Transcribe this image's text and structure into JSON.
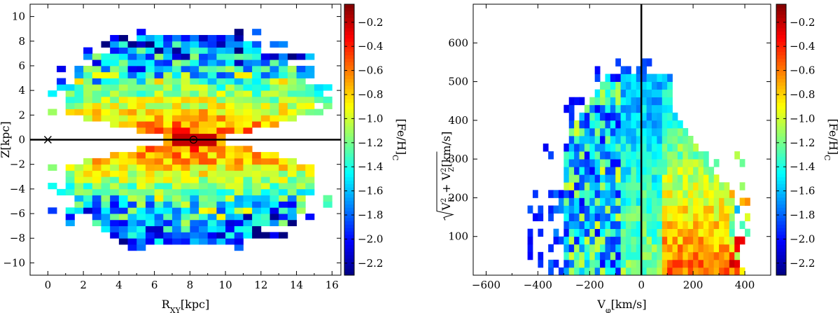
{
  "chart_data": [
    {
      "type": "heatmap",
      "xlabel_main": "R",
      "xlabel_sub": "XY",
      "xlabel_unit": "[kpc]",
      "ylabel": "Z[kpc]",
      "xlim": [
        -1,
        16.5
      ],
      "ylim": [
        -11,
        11
      ],
      "xticks": [
        0,
        2,
        4,
        6,
        8,
        10,
        12,
        14,
        16
      ],
      "yticks": [
        -10,
        -8,
        -6,
        -4,
        -2,
        0,
        2,
        4,
        6,
        8,
        10
      ],
      "bin": 0.5,
      "hline_y": 0,
      "markers": [
        {
          "symbol": "cross",
          "x": 0,
          "y": 0
        },
        {
          "symbol": "sun",
          "x": 8.2,
          "y": 0
        }
      ],
      "colorbar": {
        "label_main": "[Fe/H]",
        "label_sub": "C",
        "min": -2.3,
        "max": -0.05,
        "ticks": [
          -0.2,
          -0.4,
          -0.6,
          -0.8,
          -1.0,
          -1.2,
          -1.4,
          -1.6,
          -1.8,
          -2.0,
          -2.2
        ]
      },
      "colormap": "jet"
    },
    {
      "type": "heatmap",
      "xlabel_main": "V",
      "xlabel_sub": "φ",
      "xlabel_unit": "[km/s]",
      "ylabel_unit": "[km/s]",
      "xlim": [
        -650,
        500
      ],
      "ylim": [
        0,
        700
      ],
      "xticks": [
        -600,
        -400,
        -200,
        0,
        200,
        400
      ],
      "yticks": [
        100,
        200,
        300,
        400,
        500,
        600
      ],
      "bin_x": 20,
      "bin_y": 20,
      "vline_x": 0,
      "colorbar": {
        "label_main": "[Fe/H]",
        "label_sub": "C",
        "min": -2.3,
        "max": -0.05,
        "ticks": [
          -0.2,
          -0.4,
          -0.6,
          -0.8,
          -1.0,
          -1.2,
          -1.4,
          -1.6,
          -1.8,
          -2.0,
          -2.2
        ]
      },
      "colormap": "jet"
    }
  ]
}
